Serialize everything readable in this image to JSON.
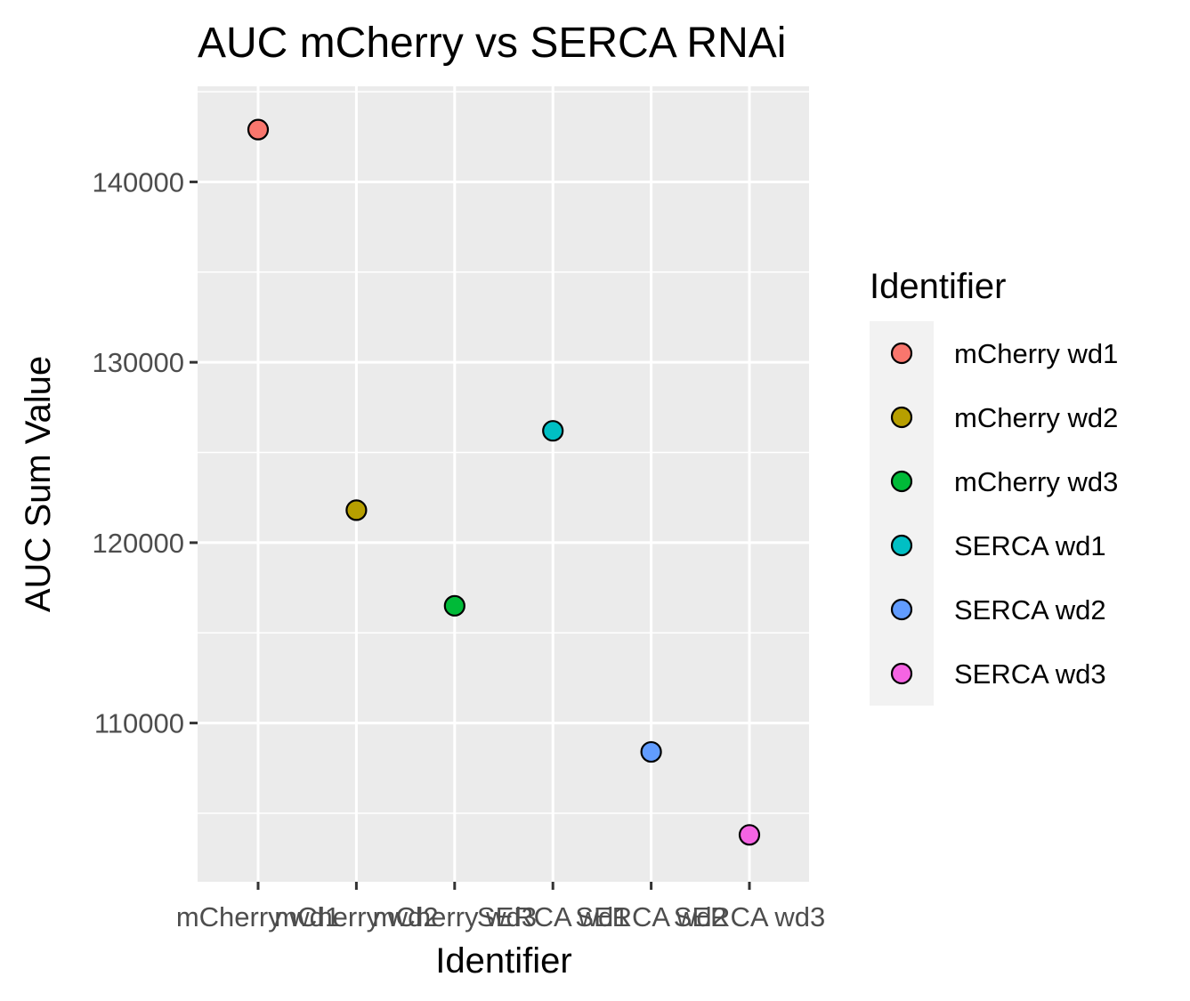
{
  "chart_data": {
    "type": "scatter",
    "title": "AUC mCherry vs SERCA RNAi",
    "xlabel": "Identifier",
    "ylabel": "AUC Sum Value",
    "categories": [
      "mCherry wd1",
      "mCherry wd2",
      "mCherry wd3",
      "SERCA wd1",
      "SERCA wd2",
      "SERCA wd3"
    ],
    "values": [
      142900,
      121800,
      116500,
      126200,
      108400,
      103800
    ],
    "colors": [
      "#F8766D",
      "#B79F00",
      "#00BA38",
      "#00BFC4",
      "#619CFF",
      "#F564E3"
    ],
    "ylim": [
      101200,
      145300
    ],
    "yticks": [
      110000,
      120000,
      130000,
      140000
    ],
    "ytick_labels": [
      "110000",
      "120000",
      "130000",
      "140000"
    ],
    "grid": true,
    "panel_background": "#EBEBEB",
    "legend": {
      "title": "Identifier",
      "placement": "right",
      "entries": [
        "mCherry wd1",
        "mCherry wd2",
        "mCherry wd3",
        "SERCA wd1",
        "SERCA wd2",
        "SERCA wd3"
      ]
    }
  }
}
